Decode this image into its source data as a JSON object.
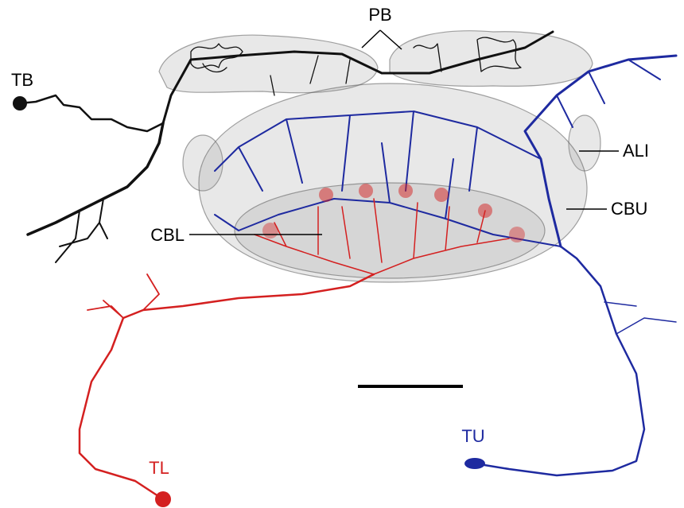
{
  "labels": {
    "pb": "PB",
    "tb": "TB",
    "ali": "ALI",
    "cbu": "CBU",
    "cbl": "CBL",
    "tl": "TL",
    "tu": "TU"
  }
}
